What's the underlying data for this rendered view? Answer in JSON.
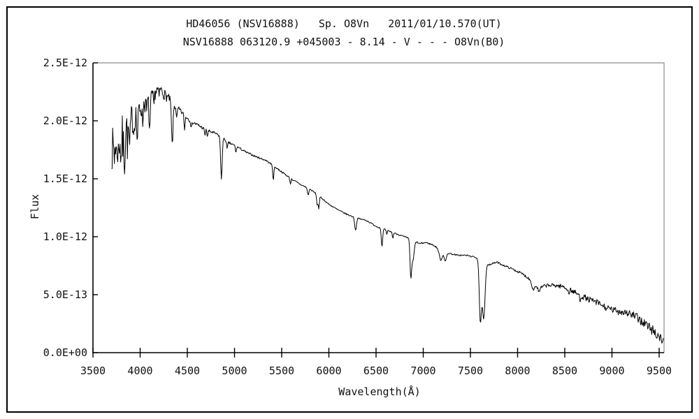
{
  "page": {
    "background": "#ffffff",
    "border_color": "#000000"
  },
  "chart_data": {
    "type": "line",
    "title": "HD46056 (NSV16888)   Sp. O8Vn   2011/01/10.570(UT)",
    "subtitle": "NSV16888 063120.9 +045003 - 8.14 - V - - - O8Vn(B0)",
    "xlabel": "Wavelength(Å)",
    "ylabel": "Flux",
    "legend": false,
    "grid": false,
    "line_color": "#000000",
    "axis_color": "#000000",
    "plot_box_color": "#8c8c8c",
    "x_axis_range": [
      3500,
      9552
    ],
    "y_axis_range": [
      0,
      2.5e-12
    ],
    "x_ticks": [
      3500,
      4000,
      4500,
      5000,
      5500,
      6000,
      6500,
      7000,
      7500,
      8000,
      8500,
      9000,
      9500
    ],
    "y_ticks": [
      {
        "flux_e12": 2.5,
        "label": "2.5E-12"
      },
      {
        "flux_e12": 2.0,
        "label": "2.0E-12"
      },
      {
        "flux_e12": 1.5,
        "label": "1.5E-12"
      },
      {
        "flux_e12": 1.0,
        "label": "1.0E-12"
      },
      {
        "flux_e12": 0.5,
        "label": "5.0E-13"
      },
      {
        "flux_e12": 0.0,
        "label": "0.0E+00"
      }
    ],
    "spectrum": {
      "flux_unit_scale": 1e-12,
      "wavelength_start": 3697,
      "wavelength_end": 9552,
      "sample_step_angstrom": 6,
      "noise_seed": 7,
      "continuum_points": [
        [
          3697,
          1.88
        ],
        [
          3750,
          1.89
        ],
        [
          3800,
          1.92
        ],
        [
          3850,
          1.97
        ],
        [
          3900,
          2.02
        ],
        [
          3950,
          2.07
        ],
        [
          4000,
          2.12
        ],
        [
          4060,
          2.17
        ],
        [
          4120,
          2.22
        ],
        [
          4170,
          2.26
        ],
        [
          4210,
          2.28
        ],
        [
          4260,
          2.23
        ],
        [
          4310,
          2.19
        ],
        [
          4360,
          2.13
        ],
        [
          4420,
          2.09
        ],
        [
          4480,
          2.04
        ],
        [
          4550,
          1.99
        ],
        [
          4620,
          1.96
        ],
        [
          4700,
          1.92
        ],
        [
          4800,
          1.89
        ],
        [
          4860,
          1.86
        ],
        [
          4940,
          1.81
        ],
        [
          5020,
          1.78
        ],
        [
          5120,
          1.73
        ],
        [
          5230,
          1.69
        ],
        [
          5330,
          1.66
        ],
        [
          5400,
          1.62
        ],
        [
          5500,
          1.56
        ],
        [
          5600,
          1.5
        ],
        [
          5700,
          1.45
        ],
        [
          5800,
          1.41
        ],
        [
          5900,
          1.35
        ],
        [
          6000,
          1.28
        ],
        [
          6100,
          1.23
        ],
        [
          6200,
          1.19
        ],
        [
          6300,
          1.16
        ],
        [
          6400,
          1.14
        ],
        [
          6500,
          1.09
        ],
        [
          6600,
          1.06
        ],
        [
          6700,
          1.03
        ],
        [
          6800,
          1.0
        ],
        [
          6900,
          0.97
        ],
        [
          6960,
          0.94
        ],
        [
          7030,
          0.95
        ],
        [
          7100,
          0.93
        ],
        [
          7160,
          0.9
        ],
        [
          7260,
          0.86
        ],
        [
          7360,
          0.84
        ],
        [
          7460,
          0.84
        ],
        [
          7560,
          0.82
        ],
        [
          7620,
          0.8
        ],
        [
          7700,
          0.76
        ],
        [
          7780,
          0.78
        ],
        [
          7860,
          0.75
        ],
        [
          7950,
          0.72
        ],
        [
          8050,
          0.68
        ],
        [
          8120,
          0.64
        ],
        [
          8180,
          0.58
        ],
        [
          8240,
          0.56
        ],
        [
          8300,
          0.58
        ],
        [
          8400,
          0.58
        ],
        [
          8480,
          0.57
        ],
        [
          8560,
          0.54
        ],
        [
          8650,
          0.5
        ],
        [
          8750,
          0.46
        ],
        [
          8850,
          0.43
        ],
        [
          8950,
          0.38
        ],
        [
          9050,
          0.36
        ],
        [
          9150,
          0.35
        ],
        [
          9250,
          0.31
        ],
        [
          9350,
          0.25
        ],
        [
          9450,
          0.18
        ],
        [
          9520,
          0.12
        ],
        [
          9552,
          0.1
        ]
      ],
      "absorption_lines": [
        {
          "center": 3712,
          "depth": 0.18,
          "sigma": 5
        },
        {
          "center": 3727,
          "depth": 0.2,
          "sigma": 5
        },
        {
          "center": 3750,
          "depth": 0.22,
          "sigma": 5
        },
        {
          "center": 3771,
          "depth": 0.22,
          "sigma": 5
        },
        {
          "center": 3798,
          "depth": 0.24,
          "sigma": 6
        },
        {
          "center": 3820,
          "depth": 0.15,
          "sigma": 5
        },
        {
          "center": 3835,
          "depth": 0.26,
          "sigma": 6
        },
        {
          "center": 3868,
          "depth": 0.18,
          "sigma": 5
        },
        {
          "center": 3889,
          "depth": 0.26,
          "sigma": 6
        },
        {
          "center": 3933,
          "depth": 0.14,
          "sigma": 5
        },
        {
          "center": 3970,
          "depth": 0.26,
          "sigma": 6
        },
        {
          "center": 4026,
          "depth": 0.16,
          "sigma": 5
        },
        {
          "center": 4069,
          "depth": 0.1,
          "sigma": 5
        },
        {
          "center": 4101,
          "depth": 0.28,
          "sigma": 7
        },
        {
          "center": 4144,
          "depth": 0.12,
          "sigma": 5
        },
        {
          "center": 4200,
          "depth": 0.07,
          "sigma": 5
        },
        {
          "center": 4340,
          "depth": 0.36,
          "sigma": 8
        },
        {
          "center": 4388,
          "depth": 0.1,
          "sigma": 5
        },
        {
          "center": 4471,
          "depth": 0.13,
          "sigma": 5
        },
        {
          "center": 4542,
          "depth": 0.06,
          "sigma": 5
        },
        {
          "center": 4686,
          "depth": 0.05,
          "sigma": 5
        },
        {
          "center": 4713,
          "depth": 0.05,
          "sigma": 5
        },
        {
          "center": 4861,
          "depth": 0.36,
          "sigma": 8
        },
        {
          "center": 4922,
          "depth": 0.07,
          "sigma": 5
        },
        {
          "center": 5015,
          "depth": 0.06,
          "sigma": 5
        },
        {
          "center": 5411,
          "depth": 0.12,
          "sigma": 6
        },
        {
          "center": 5592,
          "depth": 0.05,
          "sigma": 5
        },
        {
          "center": 5780,
          "depth": 0.06,
          "sigma": 7
        },
        {
          "center": 5876,
          "depth": 0.09,
          "sigma": 6
        },
        {
          "center": 5893,
          "depth": 0.11,
          "sigma": 6
        },
        {
          "center": 6283,
          "depth": 0.11,
          "sigma": 9
        },
        {
          "center": 6563,
          "depth": 0.16,
          "sigma": 7
        },
        {
          "center": 6614,
          "depth": 0.04,
          "sigma": 5
        },
        {
          "center": 6678,
          "depth": 0.05,
          "sigma": 5
        },
        {
          "center": 6868,
          "depth": 0.3,
          "sigma": 8
        },
        {
          "center": 6890,
          "depth": 0.18,
          "sigma": 13
        },
        {
          "center": 7186,
          "depth": 0.09,
          "sigma": 16
        },
        {
          "center": 7234,
          "depth": 0.08,
          "sigma": 12
        },
        {
          "center": 7605,
          "depth": 0.52,
          "sigma": 11
        },
        {
          "center": 7640,
          "depth": 0.5,
          "sigma": 15
        },
        {
          "center": 8164,
          "depth": 0.05,
          "sigma": 12
        },
        {
          "center": 8227,
          "depth": 0.04,
          "sigma": 10
        },
        {
          "center": 8542,
          "depth": 0.04,
          "sigma": 6
        },
        {
          "center": 8662,
          "depth": 0.04,
          "sigma": 6
        }
      ],
      "noise_amplitude_points": [
        [
          3697,
          0.22
        ],
        [
          3780,
          0.19
        ],
        [
          3850,
          0.15
        ],
        [
          3920,
          0.11
        ],
        [
          4000,
          0.08
        ],
        [
          4100,
          0.06
        ],
        [
          4200,
          0.045
        ],
        [
          4350,
          0.03
        ],
        [
          4500,
          0.018
        ],
        [
          4800,
          0.012
        ],
        [
          5200,
          0.008
        ],
        [
          6000,
          0.006
        ],
        [
          6800,
          0.006
        ],
        [
          7500,
          0.006
        ],
        [
          7900,
          0.008
        ],
        [
          8100,
          0.012
        ],
        [
          8400,
          0.018
        ],
        [
          8700,
          0.025
        ],
        [
          9000,
          0.03
        ],
        [
          9250,
          0.038
        ],
        [
          9400,
          0.048
        ],
        [
          9552,
          0.055
        ]
      ]
    }
  }
}
